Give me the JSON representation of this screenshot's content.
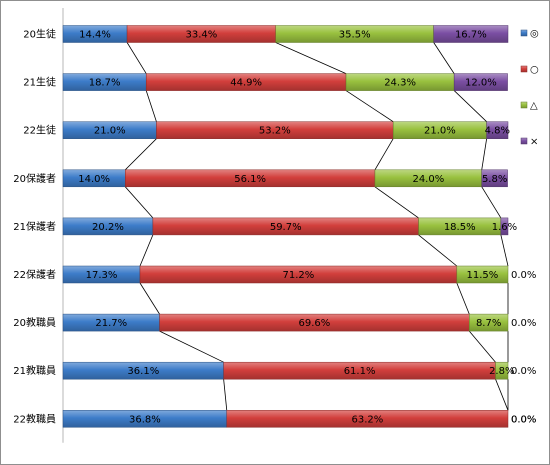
{
  "chart_data": {
    "type": "bar",
    "orientation": "horizontal",
    "stacked": true,
    "percent": true,
    "categories": [
      "20生徒",
      "21生徒",
      "22生徒",
      "20保護者",
      "21保護者",
      "22保護者",
      "20教職員",
      "21教職員",
      "22教職員"
    ],
    "series": [
      {
        "name": "◎",
        "color": "#3d7cc9",
        "values": [
          14.4,
          18.7,
          21.0,
          14.0,
          20.2,
          17.3,
          21.7,
          36.1,
          36.8
        ],
        "labels": [
          "14.4%",
          "18.7%",
          "21.0%",
          "14.0%",
          "20.2%",
          "17.3%",
          "21.7%",
          "36.1%",
          "36.8%"
        ]
      },
      {
        "name": "○",
        "color": "#d23f3c",
        "values": [
          33.4,
          44.9,
          53.2,
          56.1,
          59.7,
          71.2,
          69.6,
          61.1,
          63.2
        ],
        "labels": [
          "33.4%",
          "44.9%",
          "53.2%",
          "56.1%",
          "59.7%",
          "71.2%",
          "69.6%",
          "61.1%",
          "63.2%"
        ]
      },
      {
        "name": "△",
        "color": "#99c13f",
        "values": [
          35.5,
          24.3,
          21.0,
          24.0,
          18.5,
          11.5,
          8.7,
          2.8,
          0.0
        ],
        "labels": [
          "35.5%",
          "24.3%",
          "21.0%",
          "24.0%",
          "18.5%",
          "11.5%",
          "8.7%",
          "2.8%",
          "0.0%"
        ]
      },
      {
        "name": "×",
        "color": "#7b4fa3",
        "values": [
          16.7,
          12.0,
          4.8,
          5.8,
          1.6,
          0.0,
          0.0,
          0.0,
          0.0
        ],
        "labels": [
          "16.7%",
          "12.0%",
          "4.8%",
          "5.8%",
          "1.6%",
          "0.0%",
          "0.0%",
          "0.0%",
          "0.0%"
        ]
      }
    ],
    "xlim": [
      0,
      100
    ],
    "series_lines": true,
    "legend_position": "right",
    "title": "",
    "xlabel": "",
    "ylabel": ""
  }
}
